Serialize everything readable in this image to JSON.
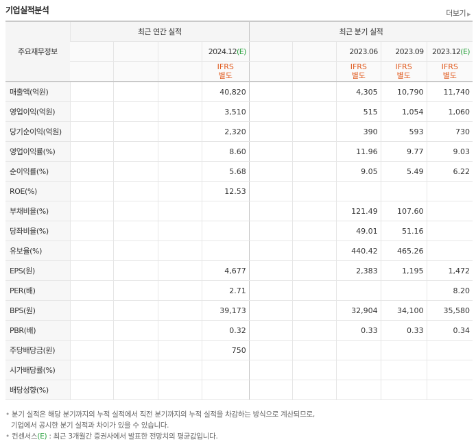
{
  "header": {
    "title": "기업실적분석",
    "more_label": "더보기"
  },
  "table": {
    "row_header_label": "주요재무정보",
    "annual_title": "최근 연간 실적",
    "quarter_title": "최근 분기 실적",
    "annual_periods": [
      {
        "date": "",
        "estimate_mark": "",
        "ifrs": "",
        "basis": ""
      },
      {
        "date": "",
        "estimate_mark": "",
        "ifrs": "",
        "basis": ""
      },
      {
        "date": "",
        "estimate_mark": "",
        "ifrs": "",
        "basis": ""
      },
      {
        "date": "2024.12",
        "estimate_mark": "(E)",
        "ifrs": "IFRS",
        "basis": "별도"
      }
    ],
    "quarter_periods": [
      {
        "date": "",
        "estimate_mark": "",
        "ifrs": "",
        "basis": ""
      },
      {
        "date": "",
        "estimate_mark": "",
        "ifrs": "",
        "basis": ""
      },
      {
        "date": "2023.06",
        "estimate_mark": "",
        "ifrs": "IFRS",
        "basis": "별도"
      },
      {
        "date": "2023.09",
        "estimate_mark": "",
        "ifrs": "IFRS",
        "basis": "별도"
      },
      {
        "date": "2023.12",
        "estimate_mark": "(E)",
        "ifrs": "IFRS",
        "basis": "별도"
      }
    ],
    "rows": [
      {
        "label": "매출액(억원)",
        "values": [
          "",
          "",
          "",
          "40,820",
          "",
          "",
          "4,305",
          "10,790",
          "11,740"
        ]
      },
      {
        "label": "영업이익(억원)",
        "values": [
          "",
          "",
          "",
          "3,510",
          "",
          "",
          "515",
          "1,054",
          "1,060"
        ]
      },
      {
        "label": "당기순이익(억원)",
        "values": [
          "",
          "",
          "",
          "2,320",
          "",
          "",
          "390",
          "593",
          "730"
        ]
      },
      {
        "label": "영업이익률(%)",
        "values": [
          "",
          "",
          "",
          "8.60",
          "",
          "",
          "11.96",
          "9.77",
          "9.03"
        ]
      },
      {
        "label": "순이익률(%)",
        "values": [
          "",
          "",
          "",
          "5.68",
          "",
          "",
          "9.05",
          "5.49",
          "6.22"
        ]
      },
      {
        "label": "ROE(%)",
        "values": [
          "",
          "",
          "",
          "12.53",
          "",
          "",
          "",
          "",
          ""
        ]
      },
      {
        "label": "부채비율(%)",
        "values": [
          "",
          "",
          "",
          "",
          "",
          "",
          "121.49",
          "107.60",
          ""
        ]
      },
      {
        "label": "당좌비율(%)",
        "values": [
          "",
          "",
          "",
          "",
          "",
          "",
          "49.01",
          "51.16",
          ""
        ]
      },
      {
        "label": "유보율(%)",
        "values": [
          "",
          "",
          "",
          "",
          "",
          "",
          "440.42",
          "465.26",
          ""
        ]
      },
      {
        "label": "EPS(원)",
        "values": [
          "",
          "",
          "",
          "4,677",
          "",
          "",
          "2,383",
          "1,195",
          "1,472"
        ]
      },
      {
        "label": "PER(배)",
        "values": [
          "",
          "",
          "",
          "2.71",
          "",
          "",
          "",
          "",
          "8.20"
        ]
      },
      {
        "label": "BPS(원)",
        "values": [
          "",
          "",
          "",
          "39,173",
          "",
          "",
          "32,904",
          "34,100",
          "35,580"
        ]
      },
      {
        "label": "PBR(배)",
        "values": [
          "",
          "",
          "",
          "0.32",
          "",
          "",
          "0.33",
          "0.33",
          "0.34"
        ]
      },
      {
        "label": "주당배당금(원)",
        "values": [
          "",
          "",
          "",
          "750",
          "",
          "",
          "",
          "",
          ""
        ]
      },
      {
        "label": "시가배당률(%)",
        "values": [
          "",
          "",
          "",
          "",
          "",
          "",
          "",
          "",
          ""
        ]
      },
      {
        "label": "배당성향(%)",
        "values": [
          "",
          "",
          "",
          "",
          "",
          "",
          "",
          "",
          ""
        ]
      }
    ]
  },
  "notes": {
    "line1": "분기 실적은 해당 분기까지의 누적 실적에서 직전 분기까지의 누적 실적을 차감하는 방식으로 계산되므로,",
    "line2": "기업에서 공시한 분기 실적과 차이가 있을 수 있습니다.",
    "line3_prefix": "컨센서스",
    "line3_mark": "(E)",
    "line3_suffix": " : 최근 3개월간 증권사에서 발표한 전망치의 평균값입니다."
  }
}
